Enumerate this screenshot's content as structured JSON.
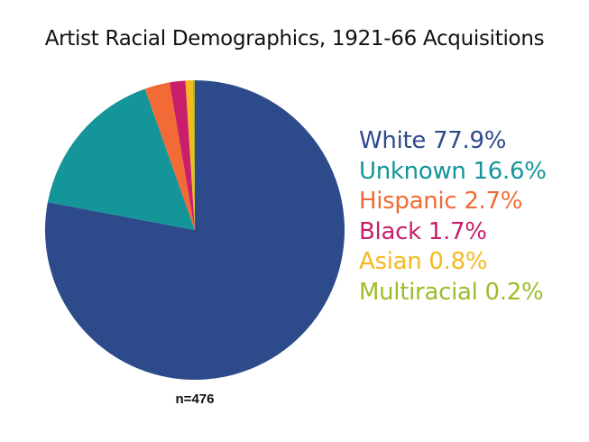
{
  "chart_data": {
    "type": "pie",
    "title": "Artist Racial Demographics, 1921-66 Acquisitions",
    "start_angle": "top",
    "direction": "clockwise",
    "slices": [
      {
        "label": "White",
        "value": 77.9,
        "text": "White 77.9%",
        "color": "#2d4a8a"
      },
      {
        "label": "Unknown",
        "value": 16.6,
        "text": "Unknown 16.6%",
        "color": "#14959a"
      },
      {
        "label": "Hispanic",
        "value": 2.7,
        "text": "Hispanic 2.7%",
        "color": "#f26a35"
      },
      {
        "label": "Black",
        "value": 1.7,
        "text": "Black 1.7%",
        "color": "#c81e6b"
      },
      {
        "label": "Asian",
        "value": 0.8,
        "text": "Asian 0.8%",
        "color": "#f5b81e"
      },
      {
        "label": "Multiracial",
        "value": 0.2,
        "text": "Multiracial 0.2%",
        "color": "#9bbd2a"
      }
    ],
    "annotation": "n=476",
    "legend_placement": "right"
  }
}
